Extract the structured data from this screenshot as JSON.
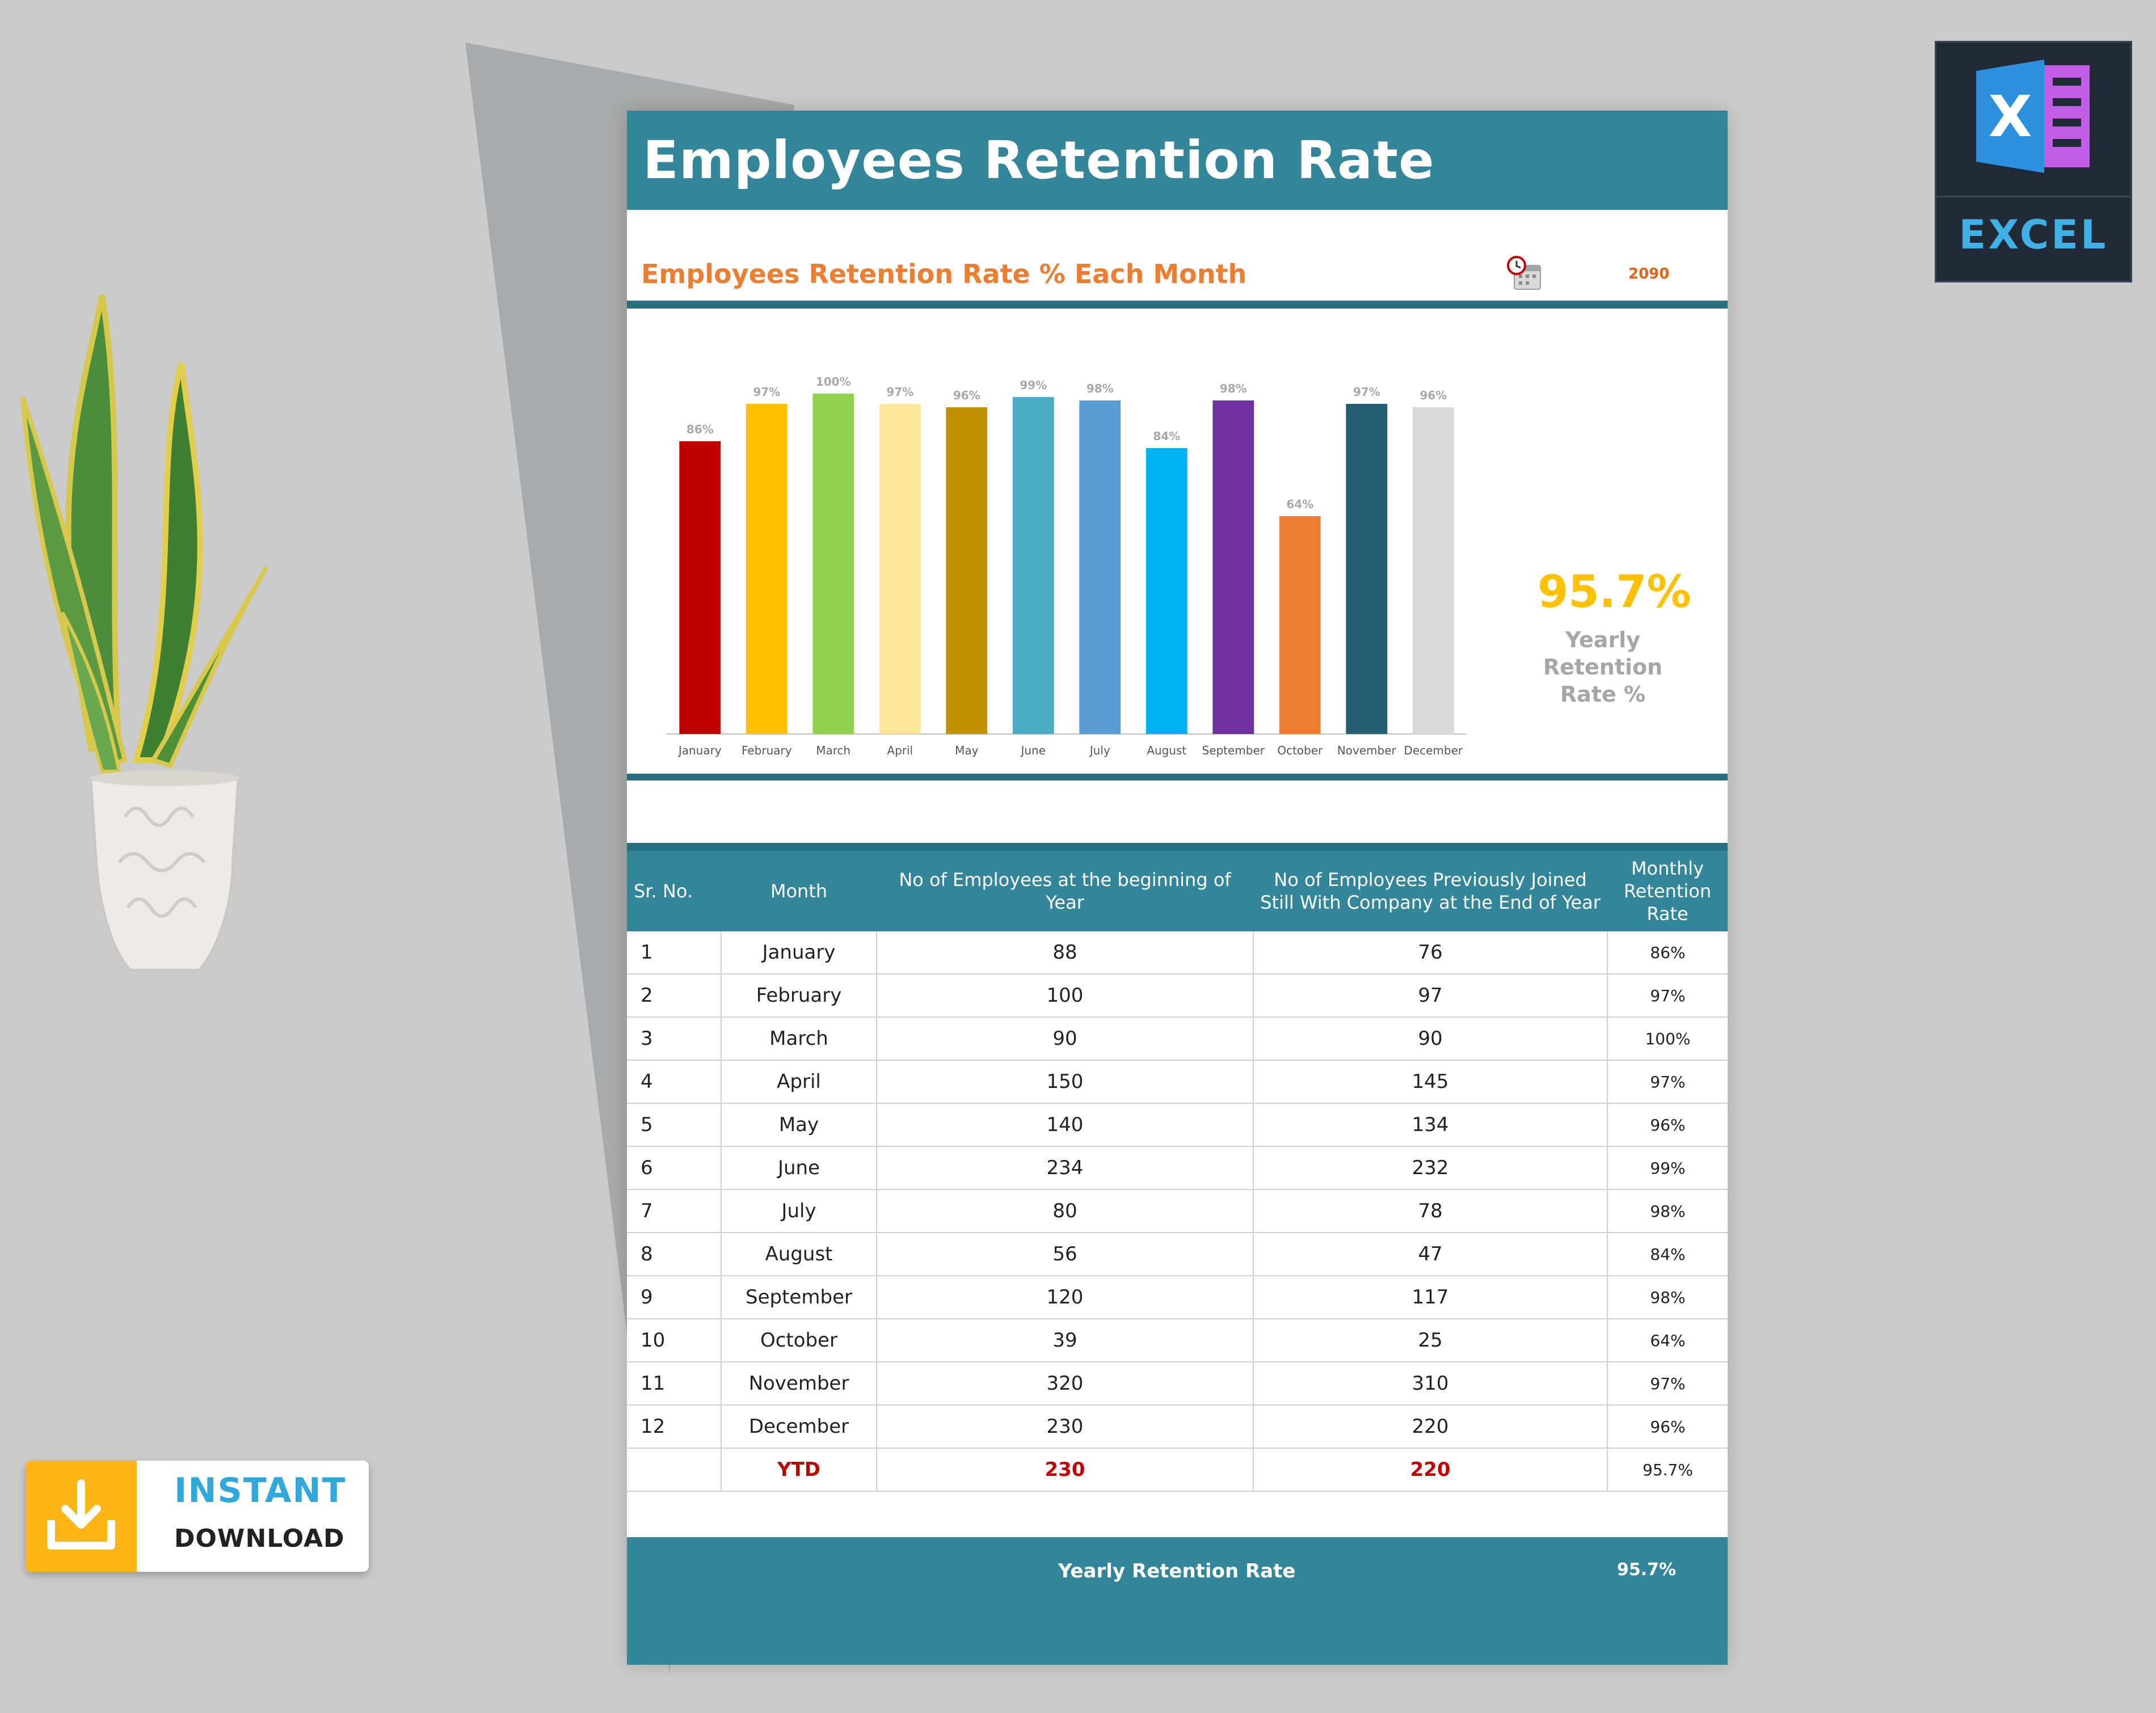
{
  "document": {
    "title": "Employees Retention Rate",
    "subtitle": "Employees Retention Rate % Each Month",
    "year": "2090",
    "yearly_rate": "95.7%",
    "yearly_caption": "Yearly Retention Rate %"
  },
  "chart_data": {
    "type": "bar",
    "categories": [
      "January",
      "February",
      "March",
      "April",
      "May",
      "June",
      "July",
      "August",
      "September",
      "October",
      "November",
      "December"
    ],
    "values": [
      86,
      97,
      100,
      97,
      96,
      99,
      98,
      84,
      98,
      64,
      97,
      96
    ],
    "value_labels": [
      "86%",
      "97%",
      "100%",
      "97%",
      "96%",
      "99%",
      "98%",
      "84%",
      "98%",
      "64%",
      "97%",
      "96%"
    ],
    "colors": [
      "#c00000",
      "#ffc000",
      "#92d050",
      "#ffe699",
      "#bf9000",
      "#4bacc6",
      "#5b9bd5",
      "#00b0f0",
      "#7030a0",
      "#ed7d31",
      "#255e6e",
      "#d9d9d9"
    ],
    "ylim": [
      0,
      100
    ],
    "grid": false,
    "legend": false
  },
  "table": {
    "headers": {
      "sr": "Sr. No.",
      "month": "Month",
      "begin": "No of Employees at the beginning of Year",
      "still": "No of Employees Previously Joined Still With Company at the End of Year",
      "rate": "Monthly Retention Rate"
    },
    "rows": [
      {
        "sr": "1",
        "month": "January",
        "begin": "88",
        "still": "76",
        "rate": "86%"
      },
      {
        "sr": "2",
        "month": "February",
        "begin": "100",
        "still": "97",
        "rate": "97%"
      },
      {
        "sr": "3",
        "month": "March",
        "begin": "90",
        "still": "90",
        "rate": "100%"
      },
      {
        "sr": "4",
        "month": "April",
        "begin": "150",
        "still": "145",
        "rate": "97%"
      },
      {
        "sr": "5",
        "month": "May",
        "begin": "140",
        "still": "134",
        "rate": "96%"
      },
      {
        "sr": "6",
        "month": "June",
        "begin": "234",
        "still": "232",
        "rate": "99%"
      },
      {
        "sr": "7",
        "month": "July",
        "begin": "80",
        "still": "78",
        "rate": "98%"
      },
      {
        "sr": "8",
        "month": "August",
        "begin": "56",
        "still": "47",
        "rate": "84%"
      },
      {
        "sr": "9",
        "month": "September",
        "begin": "120",
        "still": "117",
        "rate": "98%"
      },
      {
        "sr": "10",
        "month": "October",
        "begin": "39",
        "still": "25",
        "rate": "64%"
      },
      {
        "sr": "11",
        "month": "November",
        "begin": "320",
        "still": "310",
        "rate": "97%"
      },
      {
        "sr": "12",
        "month": "December",
        "begin": "230",
        "still": "220",
        "rate": "96%"
      }
    ],
    "ytd": {
      "label": "YTD",
      "begin": "230",
      "still": "220",
      "rate": "95.7%"
    },
    "footer": {
      "label": "Yearly Retention Rate",
      "value": "95.7%"
    }
  },
  "badges": {
    "excel_letter": "X",
    "excel_name": "EXCEL",
    "instant": "INSTANT",
    "download": "DOWNLOAD"
  }
}
